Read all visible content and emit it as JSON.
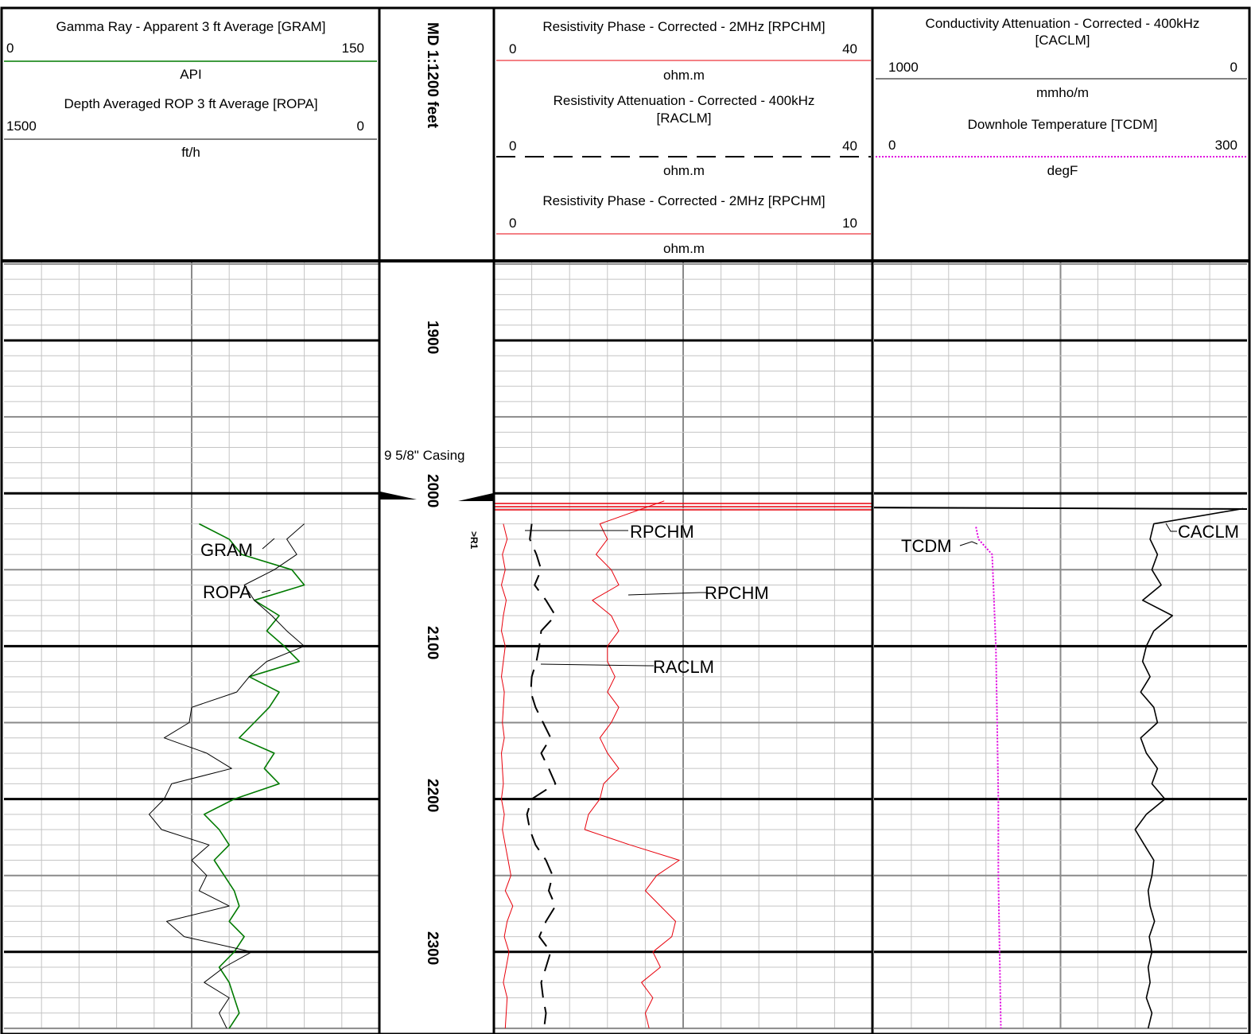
{
  "tracks": {
    "track1": {
      "curves": [
        {
          "title": "Gamma Ray - Apparent 3 ft Average [GRAM]",
          "min": "0",
          "max": "150",
          "unit": "API",
          "color": "#007a00",
          "style": "solid"
        },
        {
          "title": "Depth Averaged ROP 3 ft Average [ROPA]",
          "min": "1500",
          "max": "0",
          "unit": "ft/h",
          "color": "#000000",
          "style": "solid"
        }
      ]
    },
    "depth_track": {
      "title": "MD 1:1200 feet",
      "casing_label": "9 5/8\" Casing",
      "marker_label": ">R1",
      "depth_labels": [
        "1900",
        "2000",
        "2100",
        "2200",
        "2300"
      ]
    },
    "track2": {
      "curves": [
        {
          "title": "Resistivity Phase - Corrected - 2MHz [RPCHM]",
          "min": "0",
          "max": "40",
          "unit": "ohm.m",
          "color": "#e8000b",
          "style": "solid"
        },
        {
          "title": "Resistivity Attenuation - Corrected - 400kHz",
          "title2": "[RACLM]",
          "min": "0",
          "max": "40",
          "unit": "ohm.m",
          "color": "#000000",
          "style": "dashed"
        },
        {
          "title": "Resistivity Phase - Corrected - 2MHz [RPCHM]",
          "min": "0",
          "max": "10",
          "unit": "ohm.m",
          "color": "#e8000b",
          "style": "solid"
        }
      ]
    },
    "track3": {
      "curves": [
        {
          "title": "Conductivity Attenuation - Corrected - 400kHz",
          "title2": "[CACLM]",
          "min": "1000",
          "max": "0",
          "unit": "mmho/m",
          "color": "#000000",
          "style": "solid"
        },
        {
          "title": "Downhole Temperature [TCDM]",
          "min": "0",
          "max": "300",
          "unit": "degF",
          "color": "#e000e0",
          "style": "dotted"
        }
      ]
    }
  },
  "curve_labels": {
    "gram": "GRAM",
    "ropa": "ROPA",
    "rpchm_40": "RPCHM",
    "rpchm_10": "RPCHM",
    "raclm": "RACLM",
    "tcdm": "TCDM",
    "caclm": "CACLM"
  },
  "chart_data": {
    "type": "line",
    "depth_axis": {
      "label": "MD 1:1200 feet",
      "range": [
        1850,
        2350
      ],
      "ticks": [
        1900,
        2000,
        2100,
        2200,
        2300
      ]
    },
    "casing_depth": 2000,
    "series": [
      {
        "name": "GRAM",
        "unit": "API",
        "scale": [
          0,
          150
        ],
        "depth": [
          2020,
          2030,
          2040,
          2050,
          2060,
          2070,
          2080,
          2090,
          2100,
          2110,
          2120,
          2130,
          2140,
          2150,
          2160,
          2170,
          2180,
          2190,
          2200,
          2210,
          2220,
          2230,
          2240,
          2250,
          2260,
          2270,
          2280,
          2290,
          2300,
          2310,
          2320,
          2330,
          2340,
          2350
        ],
        "values": [
          78,
          90,
          95,
          115,
          120,
          100,
          110,
          105,
          112,
          118,
          98,
          110,
          106,
          100,
          94,
          108,
          104,
          110,
          92,
          80,
          86,
          90,
          84,
          88,
          92,
          94,
          90,
          96,
          92,
          86,
          90,
          92,
          94,
          90
        ]
      },
      {
        "name": "ROPA",
        "unit": "ft/h",
        "scale": [
          1500,
          0
        ],
        "depth": [
          2020,
          2030,
          2040,
          2050,
          2060,
          2070,
          2080,
          2090,
          2100,
          2110,
          2120,
          2130,
          2140,
          2150,
          2160,
          2170,
          2180,
          2190,
          2200,
          2210,
          2220,
          2230,
          2240,
          2250,
          2260,
          2270,
          2280,
          2290,
          2300,
          2310,
          2320,
          2330,
          2340,
          2350
        ],
        "values": [
          300,
          370,
          330,
          420,
          540,
          500,
          430,
          370,
          300,
          450,
          520,
          570,
          750,
          760,
          860,
          690,
          590,
          830,
          860,
          920,
          870,
          680,
          750,
          690,
          720,
          600,
          850,
          780,
          510,
          620,
          700,
          600,
          640,
          610
        ]
      },
      {
        "name": "RPCHM",
        "unit": "ohm.m",
        "scale": [
          0,
          10
        ],
        "depth": [
          2005,
          2020,
          2030,
          2040,
          2050,
          2060,
          2070,
          2080,
          2090,
          2100,
          2110,
          2120,
          2130,
          2140,
          2150,
          2160,
          2170,
          2180,
          2190,
          2200,
          2210,
          2220,
          2230,
          2240,
          2250,
          2260,
          2270,
          2280,
          2290,
          2300,
          2310,
          2320,
          2330,
          2340,
          2350
        ],
        "values": [
          4.5,
          2.8,
          3.0,
          2.7,
          3.1,
          3.3,
          2.6,
          3.1,
          3.3,
          3.0,
          3.0,
          3.2,
          3.0,
          3.3,
          3.1,
          2.8,
          3.0,
          3.3,
          2.9,
          2.8,
          2.5,
          2.4,
          3.6,
          4.9,
          4.3,
          4.0,
          4.4,
          4.8,
          4.7,
          4.2,
          4.4,
          3.9,
          4.2,
          4.0,
          4.1
        ]
      },
      {
        "name": "RPCHM",
        "unit": "ohm.m",
        "scale": [
          0,
          40
        ],
        "depth": [
          2020,
          2030,
          2040,
          2050,
          2060,
          2070,
          2080,
          2090,
          2100,
          2110,
          2120,
          2130,
          2140,
          2150,
          2160,
          2170,
          2180,
          2190,
          2200,
          2210,
          2220,
          2230,
          2240,
          2250,
          2260,
          2270,
          2280,
          2290,
          2300,
          2310,
          2320,
          2330,
          2340,
          2350
        ],
        "values": [
          1.0,
          1.4,
          0.9,
          1.2,
          0.8,
          1.3,
          1.0,
          0.8,
          1.2,
          1.0,
          0.8,
          1.1,
          1.0,
          0.9,
          1.1,
          0.8,
          0.9,
          1.0,
          0.8,
          1.1,
          0.9,
          1.2,
          1.5,
          1.8,
          1.2,
          2.0,
          1.4,
          1.1,
          1.6,
          1.3,
          1.0,
          1.4,
          1.3,
          1.2
        ]
      },
      {
        "name": "RACLM",
        "unit": "ohm.m",
        "scale": [
          0,
          40
        ],
        "depth": [
          2020,
          2030,
          2040,
          2050,
          2060,
          2070,
          2080,
          2090,
          2100,
          2110,
          2120,
          2130,
          2140,
          2150,
          2160,
          2170,
          2180,
          2190,
          2200,
          2210,
          2220,
          2230,
          2240,
          2250,
          2260,
          2270,
          2280,
          2290,
          2300,
          2310,
          2320,
          2330,
          2340,
          2350
        ],
        "values": [
          4.0,
          3.8,
          4.5,
          5.0,
          4.3,
          5.5,
          6.5,
          5.0,
          4.8,
          4.5,
          4.0,
          3.9,
          4.4,
          5.2,
          6.0,
          5.0,
          5.8,
          6.5,
          4.0,
          3.5,
          3.8,
          4.4,
          5.5,
          6.2,
          5.8,
          6.5,
          5.5,
          4.8,
          6.0,
          5.5,
          5.0,
          5.2,
          5.5,
          5.3
        ]
      },
      {
        "name": "CACLM",
        "unit": "mmho/m",
        "scale": [
          1000,
          0
        ],
        "depth": [
          2010,
          2020,
          2030,
          2040,
          2050,
          2060,
          2070,
          2080,
          2090,
          2100,
          2110,
          2120,
          2130,
          2140,
          2150,
          2160,
          2170,
          2180,
          2190,
          2200,
          2210,
          2220,
          2230,
          2240,
          2250,
          2260,
          2270,
          2280,
          2290,
          2300,
          2310,
          2320,
          2330,
          2340,
          2350
        ],
        "values": [
          10,
          250,
          260,
          240,
          255,
          230,
          280,
          200,
          250,
          270,
          280,
          260,
          285,
          250,
          240,
          285,
          270,
          240,
          255,
          220,
          270,
          300,
          275,
          250,
          255,
          265,
          260,
          248,
          262,
          255,
          265,
          260,
          270,
          255,
          265
        ]
      },
      {
        "name": "TCDM",
        "unit": "degF",
        "scale": [
          0,
          300
        ],
        "depth": [
          2022,
          2030,
          2040,
          2060,
          2080,
          2100,
          2150,
          2200,
          2250,
          2300,
          2350
        ],
        "values": [
          82,
          84,
          95,
          96,
          97,
          98,
          99,
          100,
          100,
          101,
          102
        ]
      }
    ]
  }
}
